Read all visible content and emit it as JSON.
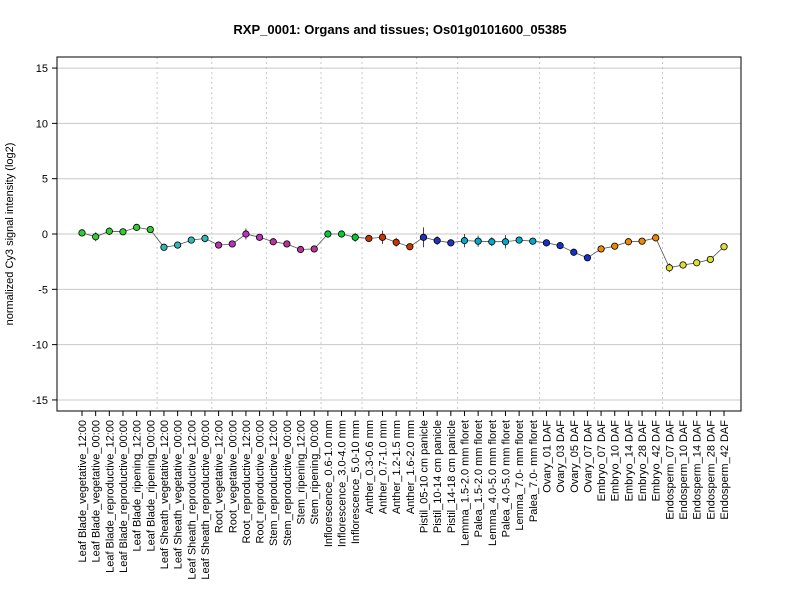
{
  "chart_data": {
    "type": "line",
    "title": "RXP_0001: Organs and tissues; Os01g0101600_05385",
    "ylabel": "normalized Cy3 signal intensity (log2)",
    "xlabel": "",
    "ylim": [
      -16,
      16
    ],
    "yticks": [
      -15,
      -10,
      -5,
      0,
      5,
      10,
      15
    ],
    "grid": true,
    "categories": [
      "Leaf Blade_vegetative_12:00",
      "Leaf Blade_vegetative_00:00",
      "Leaf Blade_reproductive_12:00",
      "Leaf Blade_reproductive_00:00",
      "Leaf Blade_ripening_12:00",
      "Leaf Blade_ripening_00:00",
      "Leaf Sheath_vegetative_12:00",
      "Leaf Sheath_vegetative_00:00",
      "Leaf Sheath_reproductive_12:00",
      "Leaf Sheath_reproductive_00:00",
      "Root_vegetative_12:00",
      "Root_vegetative_00:00",
      "Root_reproductive_12:00",
      "Root_reproductive_00:00",
      "Stem_reproductive_12:00",
      "Stem_reproductive_00:00",
      "Stem_ripening_12:00",
      "Stem_ripening_00:00",
      "Inflorescence_0.6-1.0 mm",
      "Inflorescence_3.0-4.0 mm",
      "Inflorescence_5.0-10 mm",
      "Anther_0.3-0.6 mm",
      "Anther_0.7-1.0 mm",
      "Anther_1.2-1.5 mm",
      "Anther_1.6-2.0 mm",
      "Pistil_05-10 cm panicle",
      "Pistil_10-14 cm panicle",
      "Pistil_14-18 cm panicle",
      "Lemma_1.5-2.0 mm floret",
      "Palea_1.5-2.0 mm floret",
      "Lemma_4.0-5.0 mm floret",
      "Palea_4.0-5.0 mm floret",
      "Lemma_7.0- mm floret",
      "Palea_7.0- mm floret",
      "Ovary_01 DAF",
      "Ovary_03 DAF",
      "Ovary_05 DAF",
      "Ovary_07 DAF",
      "Embryo_07 DAF",
      "Embryo_10 DAF",
      "Embryo_14 DAF",
      "Embryo_28 DAF",
      "Embryo_42 DAF",
      "Endosperm_07 DAF",
      "Endosperm_10 DAF",
      "Endosperm_14 DAF",
      "Endosperm_28 DAF",
      "Endosperm_42 DAF"
    ],
    "values": [
      0.1,
      -0.25,
      0.25,
      0.2,
      0.6,
      0.4,
      -1.2,
      -1.0,
      -0.55,
      -0.4,
      -1.0,
      -0.9,
      0.0,
      -0.3,
      -0.7,
      -0.9,
      -1.4,
      -1.35,
      0.0,
      0.0,
      -0.3,
      -0.4,
      -0.3,
      -0.75,
      -1.15,
      -0.3,
      -0.6,
      -0.8,
      -0.6,
      -0.65,
      -0.7,
      -0.7,
      -0.55,
      -0.65,
      -0.8,
      -1.05,
      -1.65,
      -2.15,
      -1.35,
      -1.1,
      -0.7,
      -0.65,
      -0.35,
      -3.05,
      -2.8,
      -2.6,
      -2.3,
      -1.15
    ],
    "errors": [
      0.15,
      0.4,
      0.35,
      0.3,
      0.2,
      0.3,
      0.2,
      0.2,
      0.2,
      0.35,
      0.2,
      0.15,
      0.5,
      0.2,
      0.15,
      0.15,
      0.1,
      0.1,
      0.2,
      0.15,
      0.4,
      0.2,
      0.6,
      0.4,
      0.2,
      0.9,
      0.4,
      0.3,
      0.6,
      0.5,
      0.4,
      0.6,
      0.3,
      0.3,
      0.2,
      0.2,
      0.3,
      0.2,
      0.2,
      0.2,
      0.2,
      0.2,
      0.2,
      0.4,
      0.3,
      0.2,
      0.2,
      0.2
    ],
    "colors": [
      "#33cc33",
      "#33cc33",
      "#33cc33",
      "#33cc33",
      "#33cc33",
      "#33cc33",
      "#30b7b7",
      "#30b7b7",
      "#30b7b7",
      "#30b7b7",
      "#bb33bb",
      "#bb33bb",
      "#bb33bb",
      "#bb33bb",
      "#bb3399",
      "#bb3399",
      "#bb3399",
      "#bb3399",
      "#00cc33",
      "#00cc33",
      "#00cc33",
      "#cc3300",
      "#cc3300",
      "#cc3300",
      "#cc3300",
      "#2233bb",
      "#2233bb",
      "#2233bb",
      "#00aacc",
      "#00aacc",
      "#00aacc",
      "#00aacc",
      "#00aacc",
      "#00aacc",
      "#1133cc",
      "#1133cc",
      "#1133cc",
      "#1133cc",
      "#ee8800",
      "#ee8800",
      "#ee8800",
      "#ee8800",
      "#ee8800",
      "#dddd33",
      "#dddd33",
      "#dddd33",
      "#dddd33",
      "#dddd33"
    ],
    "group_separators_after": [
      5,
      9,
      13,
      17,
      20,
      24,
      27,
      33,
      37,
      42
    ]
  }
}
